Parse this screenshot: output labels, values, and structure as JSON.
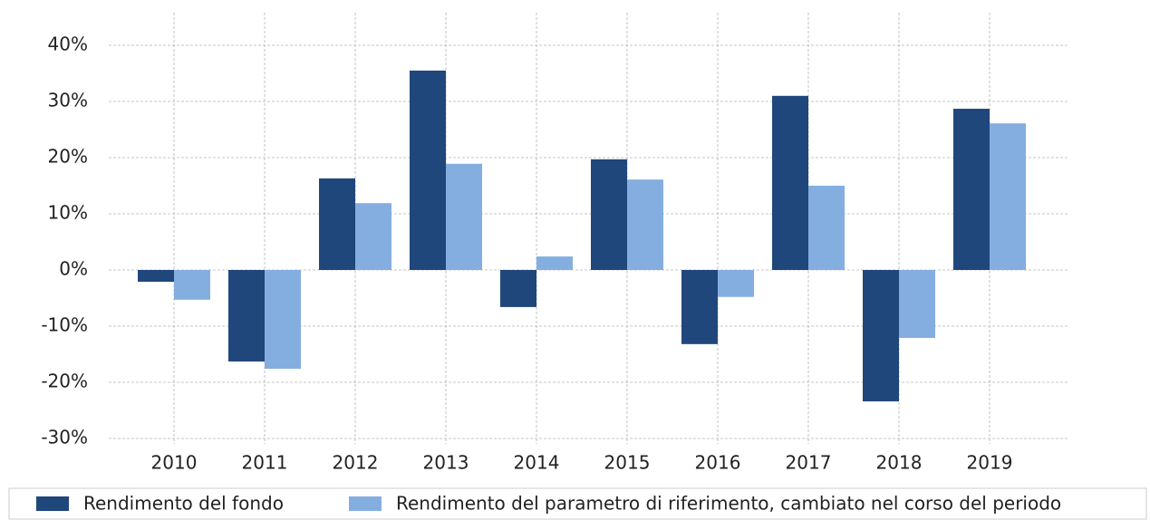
{
  "chart_data": {
    "type": "bar",
    "categories": [
      "2010",
      "2011",
      "2012",
      "2013",
      "2014",
      "2015",
      "2016",
      "2017",
      "2018",
      "2019"
    ],
    "series": [
      {
        "name": "Rendimento del fondo",
        "color": "#1f477b",
        "values": [
          -2.1,
          -16.3,
          16.3,
          35.5,
          -6.6,
          19.7,
          -13.2,
          31.0,
          -23.4,
          28.7
        ]
      },
      {
        "name": "Rendimento del parametro di riferimento, cambiato nel corso del periodo",
        "color": "#84aee0",
        "values": [
          -5.3,
          -17.6,
          11.9,
          18.9,
          2.4,
          16.1,
          -4.8,
          15.0,
          -12.1,
          26.1
        ]
      }
    ],
    "ylim": [
      -31,
      45
    ],
    "yticks": [
      {
        "value": -30,
        "label": "-30%"
      },
      {
        "value": -20,
        "label": "-20%"
      },
      {
        "value": -10,
        "label": "-10%"
      },
      {
        "value": 0,
        "label": "0%"
      },
      {
        "value": 10,
        "label": "10%"
      },
      {
        "value": 20,
        "label": "20%"
      },
      {
        "value": 30,
        "label": "30%"
      },
      {
        "value": 40,
        "label": "40%"
      }
    ],
    "grid": true,
    "legend": "bottom"
  }
}
